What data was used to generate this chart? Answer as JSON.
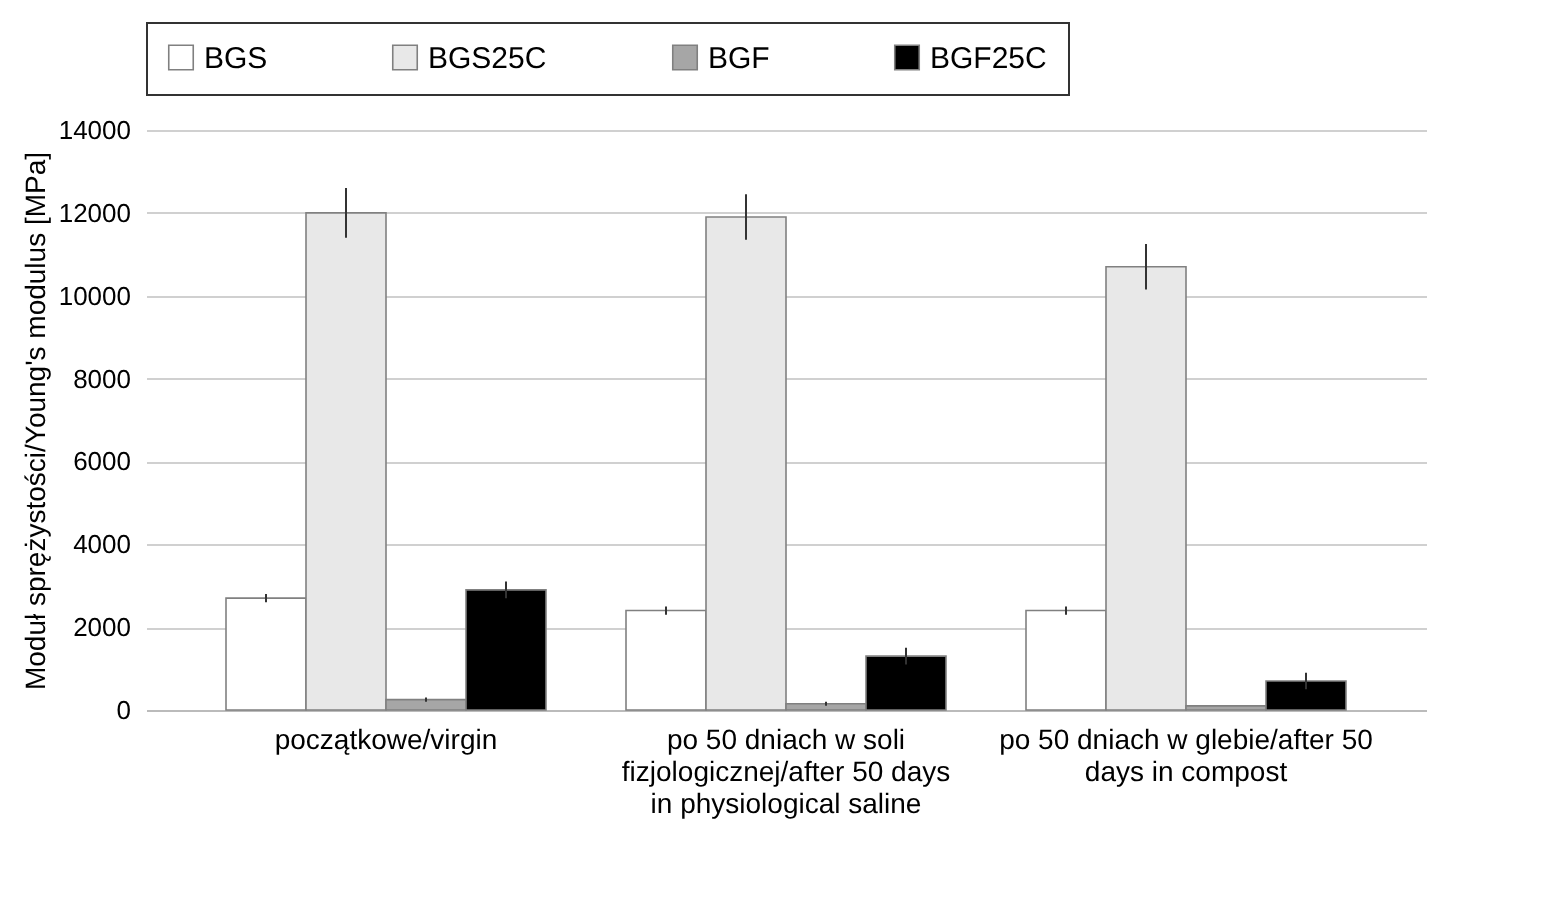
{
  "chart_data": {
    "type": "bar",
    "ylabel": "Moduł sprężystości/Young's modulus [MPa]",
    "categories": [
      "początkowe/virgin",
      "po 50 dniach w soli fizjologicznej/after 50 days in physiological saline",
      "po 50 dniach w glebie/after 50 days in compost"
    ],
    "series": [
      {
        "name": "BGS",
        "color": "#ffffff",
        "values": [
          2700,
          2400,
          2400
        ],
        "errors": [
          100,
          100,
          100
        ]
      },
      {
        "name": "BGS25C",
        "color": "#e8e8e8",
        "values": [
          12000,
          11900,
          10700
        ],
        "errors": [
          600,
          550,
          550
        ]
      },
      {
        "name": "BGF",
        "color": "#a6a6a6",
        "values": [
          250,
          150,
          100
        ],
        "errors": [
          50,
          50,
          null
        ]
      },
      {
        "name": "BGF25C",
        "color": "#000000",
        "values": [
          2900,
          1300,
          700
        ],
        "errors": [
          200,
          200,
          200
        ]
      }
    ],
    "ylim": [
      0,
      14000
    ],
    "yticks": [
      0,
      2000,
      4000,
      6000,
      8000,
      10000,
      12000,
      14000
    ],
    "grid": "y",
    "legend": "top"
  }
}
